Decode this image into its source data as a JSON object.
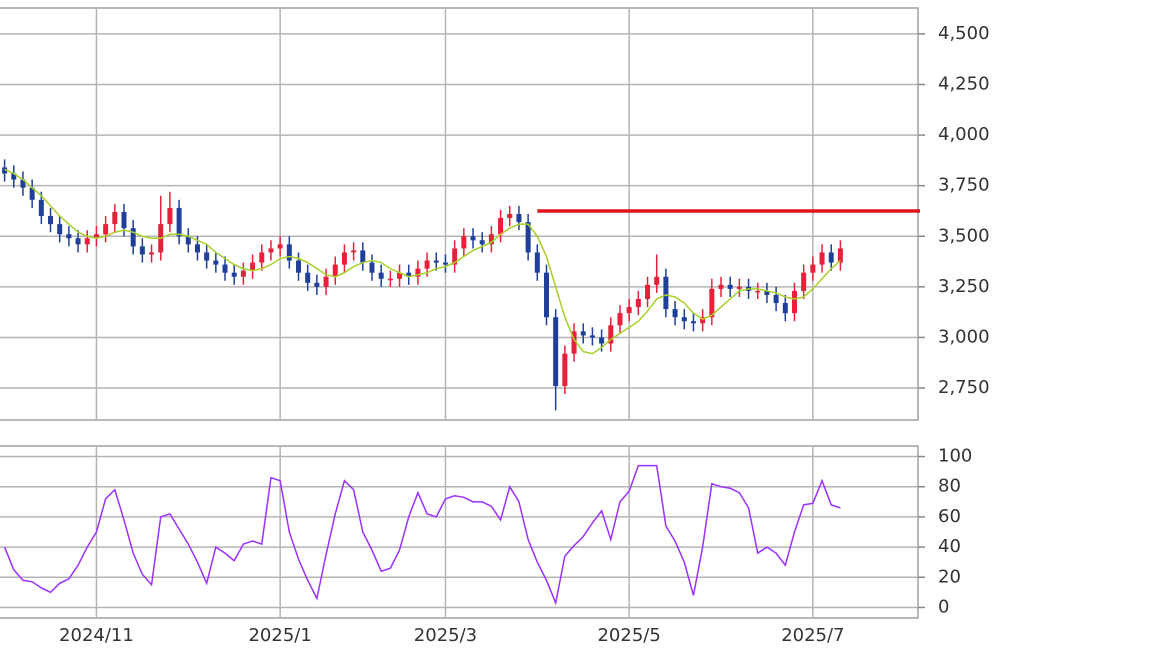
{
  "chart_data": [
    {
      "type": "candlestick",
      "up_color": "#e8203a",
      "down_color": "#1f3f9a",
      "ylim": [
        2592,
        4628
      ],
      "yticks": [
        {
          "value": 2750,
          "label": "2,750"
        },
        {
          "value": 3000,
          "label": "3,000"
        },
        {
          "value": 3250,
          "label": "3,250"
        },
        {
          "value": 3500,
          "label": "3,500"
        },
        {
          "value": 3750,
          "label": "3,750"
        },
        {
          "value": 4000,
          "label": "4,000"
        },
        {
          "value": 4250,
          "label": "4,250"
        },
        {
          "value": 4500,
          "label": "4,500"
        }
      ],
      "grid": true,
      "open": [
        3840,
        3810,
        3780,
        3740,
        3680,
        3600,
        3560,
        3510,
        3490,
        3460,
        3490,
        3510,
        3560,
        3620,
        3540,
        3450,
        3410,
        3420,
        3560,
        3640,
        3500,
        3460,
        3420,
        3380,
        3360,
        3320,
        3300,
        3330,
        3370,
        3420,
        3440,
        3460,
        3380,
        3320,
        3270,
        3250,
        3300,
        3360,
        3420,
        3430,
        3370,
        3320,
        3290,
        3290,
        3320,
        3300,
        3340,
        3380,
        3370,
        3360,
        3440,
        3500,
        3480,
        3460,
        3510,
        3590,
        3610,
        3570,
        3420,
        3320,
        3100,
        2760,
        2920,
        3030,
        3010,
        3000,
        2970,
        3060,
        3120,
        3150,
        3190,
        3260,
        3300,
        3140,
        3100,
        3080,
        3070,
        3100,
        3240,
        3260,
        3240,
        3250,
        3230,
        3230,
        3210,
        3170,
        3120,
        3230,
        3320,
        3360,
        3420,
        3370
      ],
      "high": [
        3880,
        3850,
        3820,
        3780,
        3720,
        3640,
        3600,
        3550,
        3530,
        3530,
        3550,
        3600,
        3660,
        3660,
        3580,
        3490,
        3460,
        3700,
        3720,
        3680,
        3540,
        3500,
        3460,
        3420,
        3400,
        3360,
        3370,
        3410,
        3460,
        3480,
        3500,
        3500,
        3420,
        3360,
        3310,
        3340,
        3400,
        3460,
        3470,
        3470,
        3410,
        3360,
        3330,
        3360,
        3360,
        3380,
        3420,
        3420,
        3410,
        3480,
        3540,
        3540,
        3520,
        3550,
        3630,
        3650,
        3650,
        3610,
        3460,
        3360,
        3140,
        2960,
        3070,
        3070,
        3050,
        3040,
        3100,
        3160,
        3190,
        3230,
        3300,
        3410,
        3340,
        3180,
        3140,
        3120,
        3140,
        3290,
        3300,
        3300,
        3290,
        3290,
        3270,
        3270,
        3250,
        3210,
        3270,
        3360,
        3400,
        3460,
        3460,
        3480
      ],
      "low": [
        3770,
        3740,
        3700,
        3640,
        3560,
        3520,
        3470,
        3450,
        3420,
        3420,
        3450,
        3470,
        3520,
        3500,
        3410,
        3370,
        3370,
        3380,
        3520,
        3460,
        3420,
        3380,
        3340,
        3320,
        3280,
        3260,
        3260,
        3290,
        3330,
        3380,
        3400,
        3340,
        3280,
        3230,
        3210,
        3210,
        3260,
        3320,
        3380,
        3330,
        3280,
        3250,
        3250,
        3250,
        3260,
        3260,
        3300,
        3330,
        3320,
        3320,
        3400,
        3440,
        3420,
        3420,
        3470,
        3550,
        3530,
        3380,
        3280,
        3060,
        2640,
        2720,
        2880,
        2970,
        2960,
        2930,
        2930,
        3020,
        3080,
        3110,
        3150,
        3220,
        3100,
        3060,
        3040,
        3030,
        3030,
        3060,
        3200,
        3200,
        3200,
        3190,
        3190,
        3170,
        3130,
        3080,
        3080,
        3190,
        3280,
        3320,
        3330,
        3330
      ],
      "close": [
        3810,
        3780,
        3740,
        3680,
        3600,
        3560,
        3510,
        3490,
        3460,
        3490,
        3510,
        3560,
        3620,
        3540,
        3450,
        3410,
        3420,
        3560,
        3640,
        3500,
        3460,
        3420,
        3380,
        3360,
        3320,
        3300,
        3330,
        3370,
        3420,
        3440,
        3460,
        3380,
        3320,
        3270,
        3250,
        3300,
        3360,
        3420,
        3430,
        3370,
        3320,
        3290,
        3290,
        3320,
        3300,
        3340,
        3380,
        3370,
        3360,
        3440,
        3500,
        3480,
        3460,
        3510,
        3590,
        3610,
        3570,
        3420,
        3320,
        3100,
        2760,
        2920,
        3030,
        3010,
        3000,
        2970,
        3060,
        3120,
        3150,
        3190,
        3260,
        3300,
        3140,
        3100,
        3080,
        3070,
        3100,
        3240,
        3260,
        3240,
        3250,
        3230,
        3230,
        3210,
        3170,
        3120,
        3230,
        3320,
        3360,
        3420,
        3370,
        3440
      ],
      "ma": {
        "color": "#a8d028",
        "values": [
          3830,
          3810,
          3780,
          3740,
          3700,
          3650,
          3600,
          3560,
          3520,
          3500,
          3490,
          3500,
          3520,
          3530,
          3520,
          3500,
          3490,
          3490,
          3510,
          3510,
          3500,
          3480,
          3460,
          3420,
          3390,
          3360,
          3340,
          3330,
          3340,
          3360,
          3390,
          3400,
          3390,
          3370,
          3340,
          3310,
          3300,
          3320,
          3350,
          3370,
          3380,
          3370,
          3340,
          3320,
          3300,
          3310,
          3320,
          3340,
          3350,
          3370,
          3400,
          3430,
          3450,
          3470,
          3510,
          3540,
          3560,
          3560,
          3500,
          3400,
          3250,
          3100,
          2990,
          2930,
          2920,
          2950,
          2990,
          3020,
          3050,
          3080,
          3130,
          3190,
          3210,
          3200,
          3170,
          3120,
          3090,
          3110,
          3150,
          3190,
          3230,
          3240,
          3240,
          3230,
          3220,
          3200,
          3190,
          3200,
          3240,
          3290,
          3340,
          3380
        ]
      },
      "hline": {
        "value": 3625,
        "start_index": 58,
        "color": "#e0141e"
      }
    },
    {
      "type": "line",
      "categories": [
        null,
        null,
        null,
        null,
        null,
        null,
        null,
        null,
        null,
        null,
        "2024/11",
        null,
        null,
        null,
        null,
        null,
        null,
        null,
        null,
        null,
        null,
        null,
        null,
        null,
        null,
        null,
        null,
        null,
        null,
        null,
        "2025/1",
        null,
        null,
        null,
        null,
        null,
        null,
        null,
        null,
        null,
        null,
        null,
        null,
        null,
        null,
        null,
        null,
        null,
        "2025/3",
        null,
        null,
        null,
        null,
        null,
        null,
        null,
        null,
        null,
        null,
        null,
        null,
        null,
        null,
        null,
        null,
        null,
        null,
        null,
        "2025/5",
        null,
        null,
        null,
        null,
        null,
        null,
        null,
        null,
        null,
        null,
        null,
        null,
        null,
        null,
        null,
        null,
        null,
        null,
        null,
        "2025/7",
        null,
        null,
        null
      ],
      "ylim": [
        -7,
        107
      ],
      "yticks": [
        0,
        20,
        40,
        60,
        80,
        100
      ],
      "grid": true,
      "color": "#9b30ff",
      "values": [
        40,
        25,
        18,
        17,
        13,
        10,
        16,
        19,
        28,
        40,
        50,
        72,
        78,
        58,
        36,
        22,
        15,
        60,
        62,
        52,
        42,
        30,
        16,
        40,
        36,
        31,
        42,
        44,
        42,
        86,
        84,
        50,
        32,
        18,
        6,
        35,
        62,
        84,
        78,
        50,
        38,
        24,
        26,
        38,
        60,
        76,
        62,
        60,
        72,
        74,
        73,
        70,
        70,
        67,
        58,
        80,
        70,
        45,
        30,
        18,
        3,
        34,
        41,
        47,
        56,
        64,
        45,
        70,
        77,
        94,
        94,
        94,
        54,
        44,
        30,
        8,
        40,
        82,
        80,
        79,
        76,
        66,
        36,
        40,
        36,
        28,
        50,
        68,
        69,
        84,
        68,
        66
      ]
    }
  ]
}
